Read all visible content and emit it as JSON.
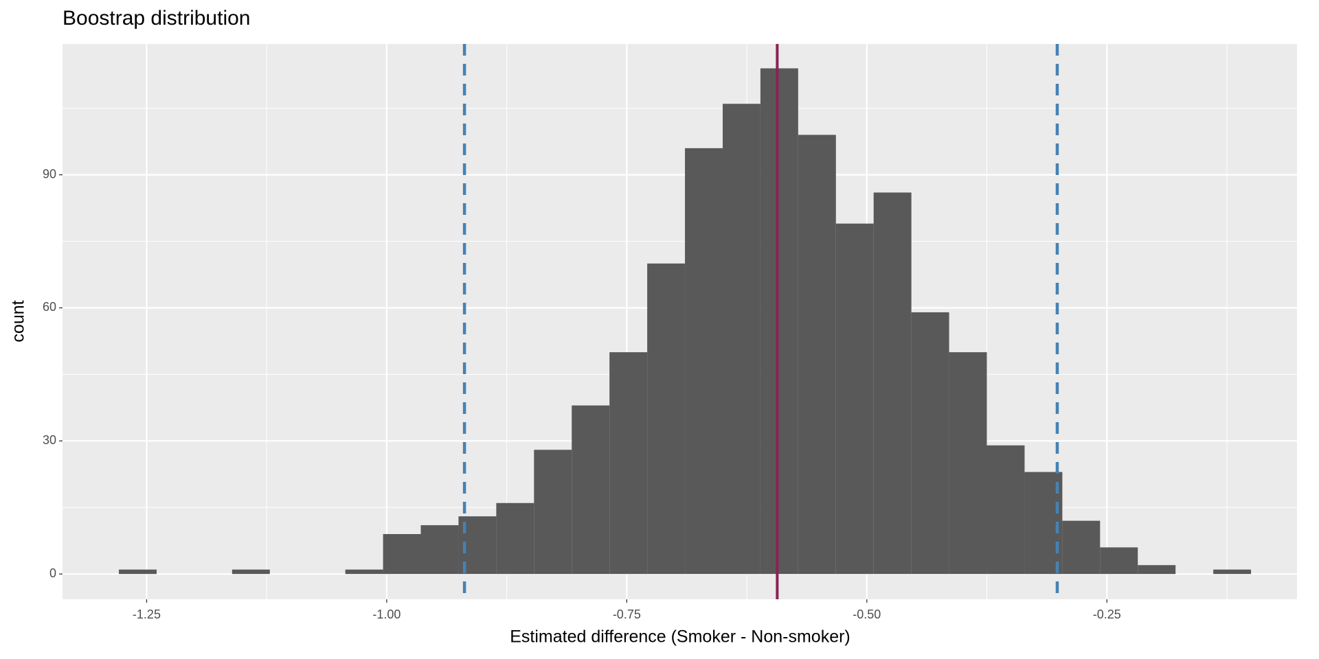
{
  "chart_data": {
    "type": "histogram",
    "title": "Boostrap distribution",
    "x_label": "Estimated difference (Smoker - Non-smoker)",
    "y_label": "count",
    "bins": [
      -1.2789,
      -1.2396,
      -1.2003,
      -1.161,
      -1.1217,
      -1.0824,
      -1.0431,
      -1.0038,
      -0.9645,
      -0.9252,
      -0.8859,
      -0.8466,
      -0.8073,
      -0.768,
      -0.7287,
      -0.6894,
      -0.6501,
      -0.6108,
      -0.5715,
      -0.5322,
      -0.4929,
      -0.4536,
      -0.4143,
      -0.375,
      -0.3357,
      -0.2964,
      -0.2571,
      -0.2178,
      -0.1785,
      -0.1392,
      -0.0999
    ],
    "values": [
      1,
      0,
      0,
      1,
      0,
      0,
      1,
      9,
      11,
      13,
      16,
      28,
      38,
      50,
      70,
      96,
      106,
      114,
      99,
      79,
      86,
      59,
      50,
      29,
      23,
      12,
      6,
      2,
      0,
      1
    ],
    "color": "#595959",
    "vlines": [
      {
        "value": -0.919,
        "color": "#4682b4",
        "style": "dashed"
      },
      {
        "value": -0.5933,
        "color": "#8b2252",
        "style": "solid"
      },
      {
        "value": -0.3017,
        "color": "#4682b4",
        "style": "dashed"
      }
    ],
    "xlim": [
      -1.3376,
      -0.052
    ],
    "ylim": [
      -5.7,
      119.5
    ],
    "xticks": [
      -1.25,
      {
        "value": -1,
        "label": "-1.00"
      },
      -0.75,
      {
        "value": -0.5,
        "label": "-0.50"
      },
      -0.25
    ],
    "yticks": [
      0,
      30,
      60,
      90
    ],
    "grid": true
  }
}
